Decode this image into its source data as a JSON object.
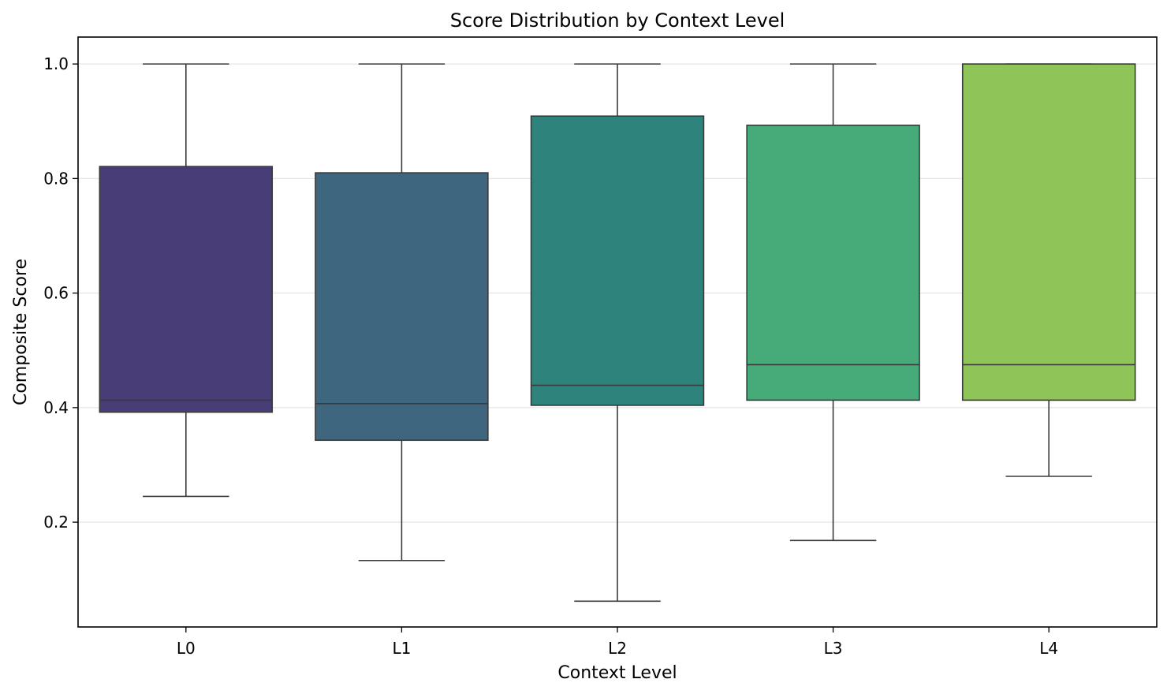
{
  "chart_data": {
    "type": "box",
    "title": "Score Distribution by Context Level",
    "xlabel": "Context Level",
    "ylabel": "Composite Score",
    "categories": [
      "L0",
      "L1",
      "L2",
      "L3",
      "L4"
    ],
    "ylim": [
      0.017,
      1.047
    ],
    "yticks": [
      0.2,
      0.4,
      0.6,
      0.8,
      1.0
    ],
    "ytick_labels": [
      "0.2",
      "0.4",
      "0.6",
      "0.8",
      "1.0"
    ],
    "grid": "horizontal",
    "boxes": [
      {
        "category": "L0",
        "whisker_low": 0.245,
        "q1": 0.392,
        "median": 0.413,
        "q3": 0.821,
        "whisker_high": 1.0,
        "color": "#483d77"
      },
      {
        "category": "L1",
        "whisker_low": 0.133,
        "q1": 0.343,
        "median": 0.407,
        "q3": 0.81,
        "whisker_high": 1.0,
        "color": "#3e677f"
      },
      {
        "category": "L2",
        "whisker_low": 0.062,
        "q1": 0.404,
        "median": 0.439,
        "q3": 0.909,
        "whisker_high": 1.0,
        "color": "#2e837d"
      },
      {
        "category": "L3",
        "whisker_low": 0.168,
        "q1": 0.413,
        "median": 0.475,
        "q3": 0.893,
        "whisker_high": 1.0,
        "color": "#47aa79"
      },
      {
        "category": "L4",
        "whisker_low": 0.28,
        "q1": 0.413,
        "median": 0.475,
        "q3": 1.0,
        "whisker_high": 1.0,
        "color": "#8fc458"
      }
    ]
  }
}
